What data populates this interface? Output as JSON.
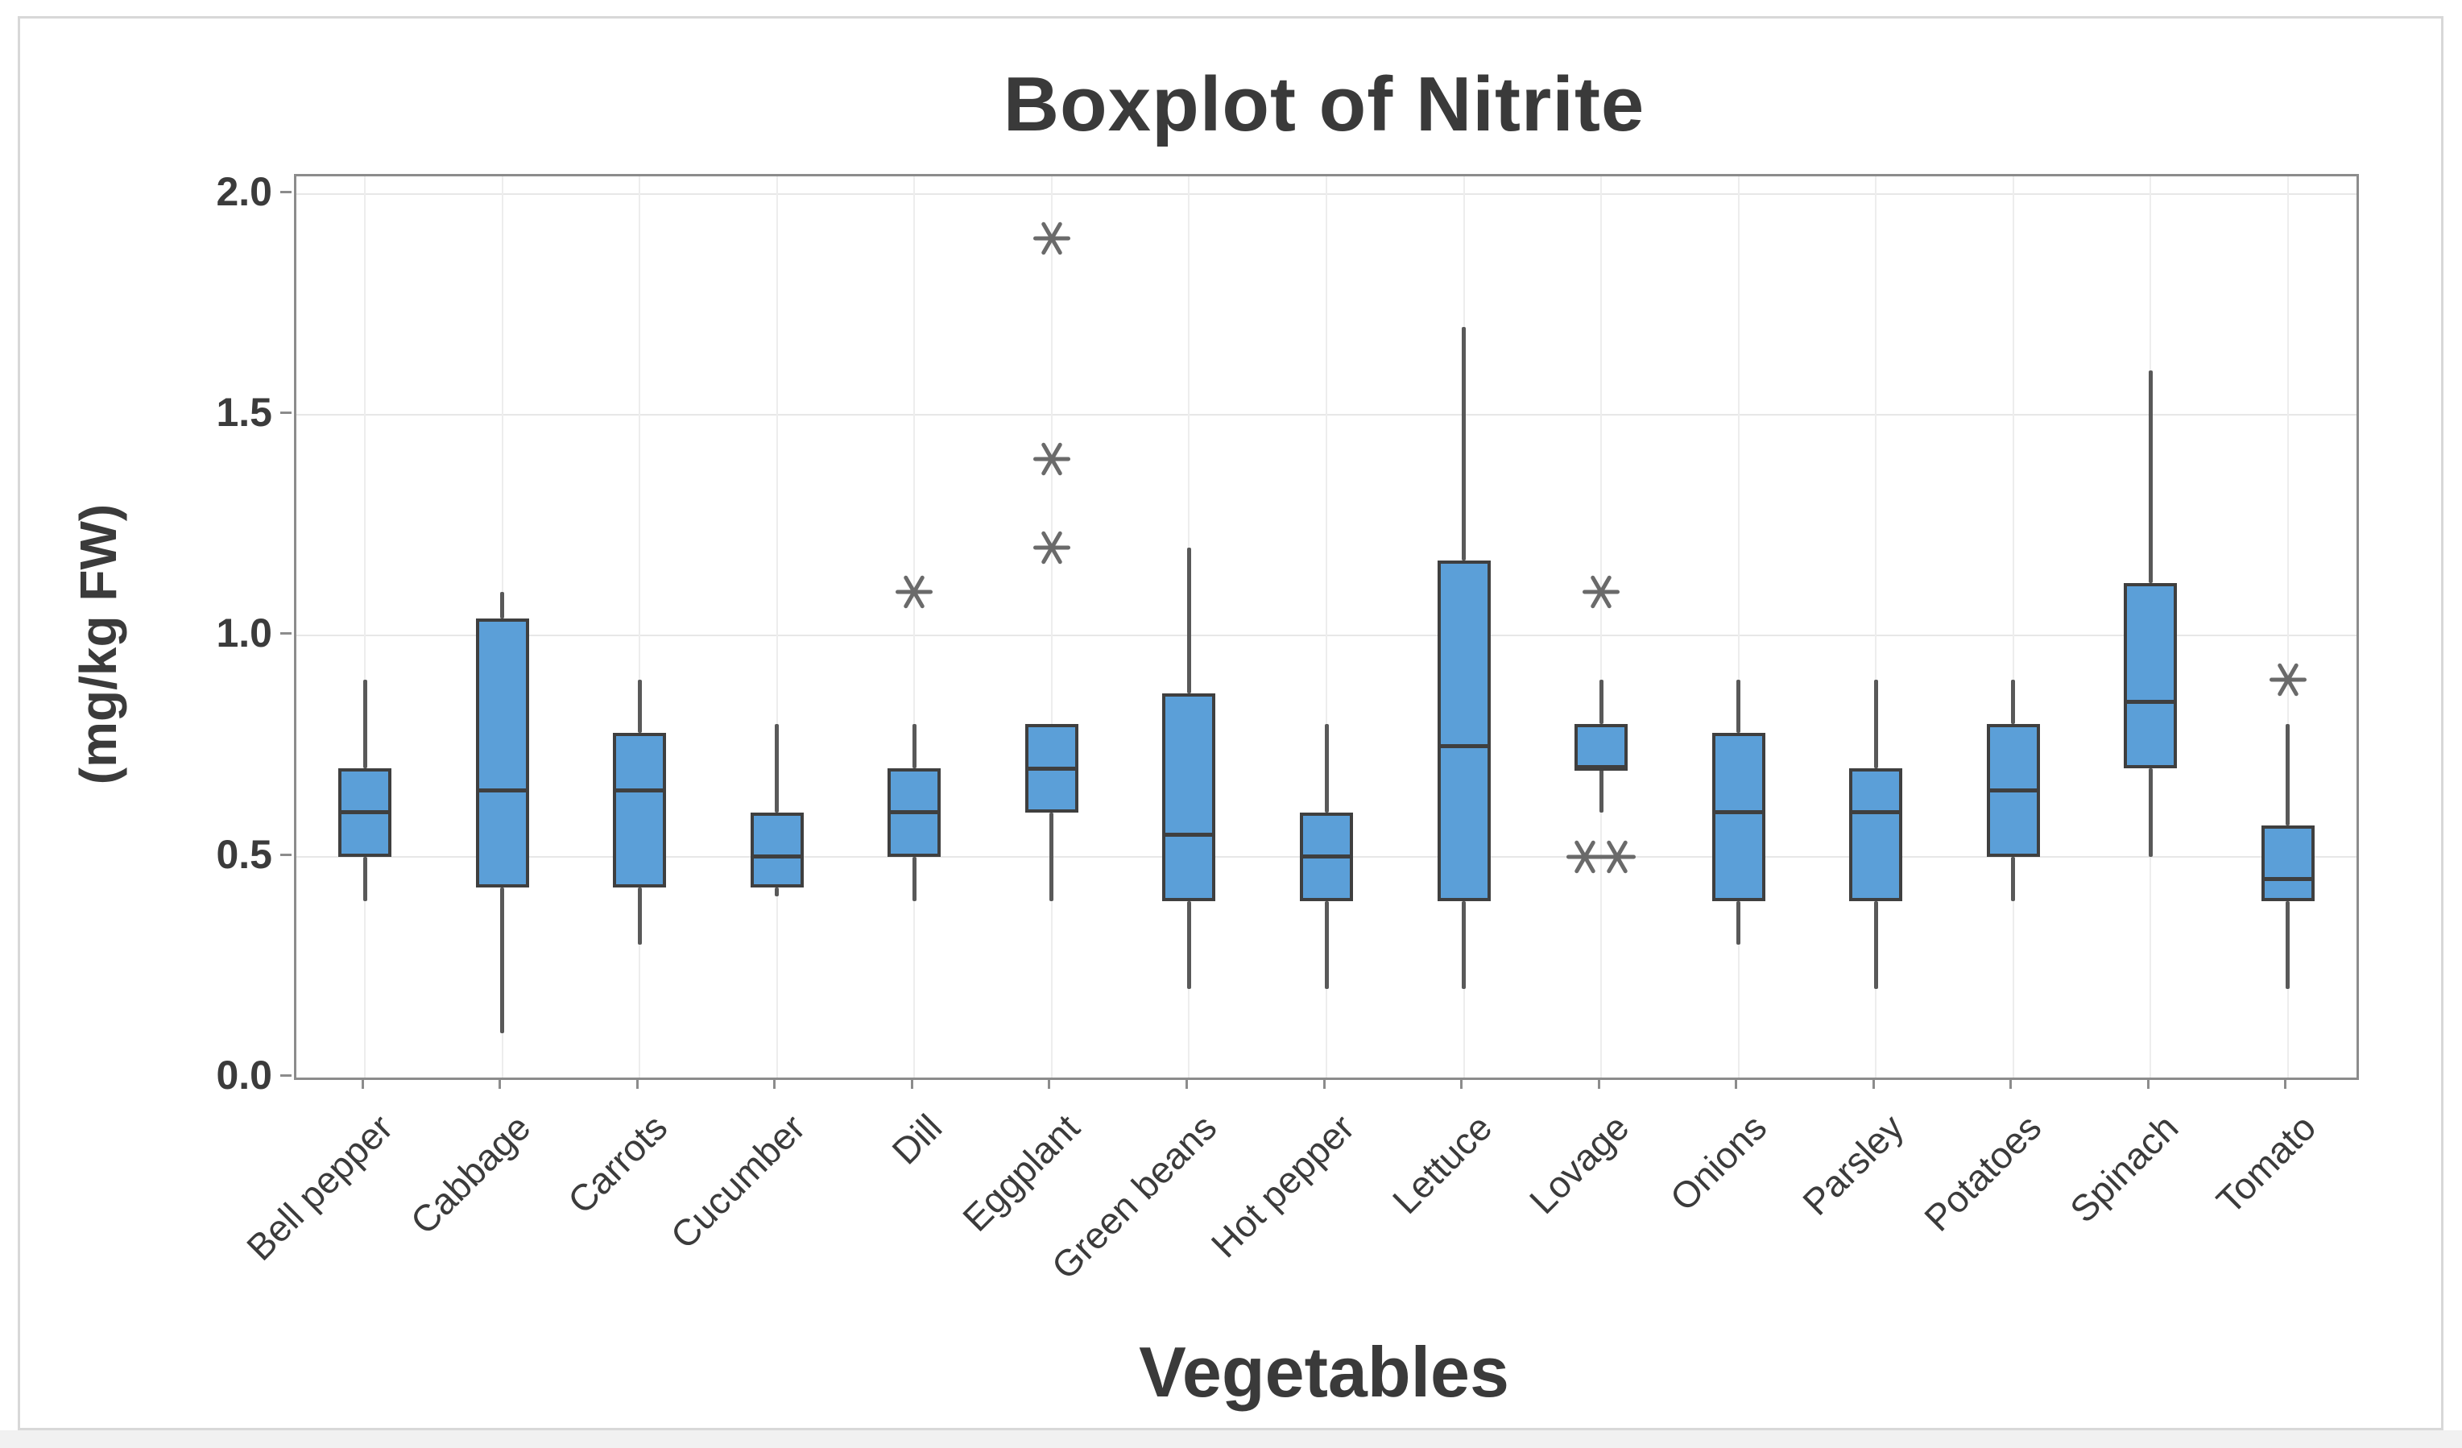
{
  "figure": {
    "title": "Boxplot of Nitrite",
    "x_axis_title": "Vegetables",
    "y_axis_title": "(mg/kg FW)"
  },
  "chart_data": {
    "type": "boxplot",
    "title": "Boxplot of Nitrite",
    "xlabel": "Vegetables",
    "ylabel": "(mg/kg FW)",
    "ylim": [
      0,
      2.04
    ],
    "yticks": [
      0.0,
      0.5,
      1.0,
      1.5,
      2.0
    ],
    "ytick_labels": [
      "0.0",
      "0.5",
      "1.0",
      "1.5",
      "2.0"
    ],
    "grid": true,
    "legend": "none",
    "colors": {
      "box_fill": "#5b9fd8",
      "box_border": "#3f3f3f",
      "median": "#3f3f3f",
      "whisker": "#595959",
      "outlier": "#6a6a6a",
      "gridline": "#e7e7e7",
      "frame": "#8c8c8c",
      "text": "#3b3b3b"
    },
    "categories": [
      "Bell pepper",
      "Cabbage",
      "Carrots",
      "Cucumber",
      "Dill",
      "Eggplant",
      "Green beans",
      "Hot pepper",
      "Lettuce",
      "Lovage",
      "Onions",
      "Parsley",
      "Potatoes",
      "Spinach",
      "Tomato"
    ],
    "series": [
      {
        "name": "Bell pepper",
        "whislo": 0.4,
        "q1": 0.5,
        "med": 0.6,
        "q3": 0.7,
        "whishi": 0.9,
        "outliers": []
      },
      {
        "name": "Cabbage",
        "whislo": 0.1,
        "q1": 0.43,
        "med": 0.65,
        "q3": 1.04,
        "whishi": 1.1,
        "outliers": []
      },
      {
        "name": "Carrots",
        "whislo": 0.3,
        "q1": 0.43,
        "med": 0.65,
        "q3": 0.78,
        "whishi": 0.9,
        "outliers": []
      },
      {
        "name": "Cucumber",
        "whislo": 0.41,
        "q1": 0.43,
        "med": 0.5,
        "q3": 0.6,
        "whishi": 0.8,
        "outliers": []
      },
      {
        "name": "Dill",
        "whislo": 0.4,
        "q1": 0.5,
        "med": 0.6,
        "q3": 0.7,
        "whishi": 0.8,
        "outliers": [
          1.1
        ]
      },
      {
        "name": "Eggplant",
        "whislo": 0.4,
        "q1": 0.6,
        "med": 0.7,
        "q3": 0.8,
        "whishi": 0.8,
        "outliers": [
          1.2,
          1.4,
          1.9
        ]
      },
      {
        "name": "Green beans",
        "whislo": 0.2,
        "q1": 0.4,
        "med": 0.55,
        "q3": 0.87,
        "whishi": 1.2,
        "outliers": []
      },
      {
        "name": "Hot pepper",
        "whislo": 0.2,
        "q1": 0.4,
        "med": 0.5,
        "q3": 0.6,
        "whishi": 0.8,
        "outliers": []
      },
      {
        "name": "Lettuce",
        "whislo": 0.2,
        "q1": 0.4,
        "med": 0.75,
        "q3": 1.17,
        "whishi": 1.7,
        "outliers": []
      },
      {
        "name": "Lovage",
        "whislo": 0.6,
        "q1": 0.7,
        "med": 0.7,
        "q3": 0.8,
        "whishi": 0.9,
        "outliers": [
          1.1,
          0.5,
          0.5
        ]
      },
      {
        "name": "Onions",
        "whislo": 0.3,
        "q1": 0.4,
        "med": 0.6,
        "q3": 0.78,
        "whishi": 0.9,
        "outliers": []
      },
      {
        "name": "Parsley",
        "whislo": 0.2,
        "q1": 0.4,
        "med": 0.6,
        "q3": 0.7,
        "whishi": 0.9,
        "outliers": []
      },
      {
        "name": "Potatoes",
        "whislo": 0.4,
        "q1": 0.5,
        "med": 0.65,
        "q3": 0.8,
        "whishi": 0.9,
        "outliers": []
      },
      {
        "name": "Spinach",
        "whislo": 0.5,
        "q1": 0.7,
        "med": 0.85,
        "q3": 1.12,
        "whishi": 1.6,
        "outliers": []
      },
      {
        "name": "Tomato",
        "whislo": 0.2,
        "q1": 0.4,
        "med": 0.45,
        "q3": 0.57,
        "whishi": 0.8,
        "outliers": [
          0.9
        ]
      }
    ]
  }
}
